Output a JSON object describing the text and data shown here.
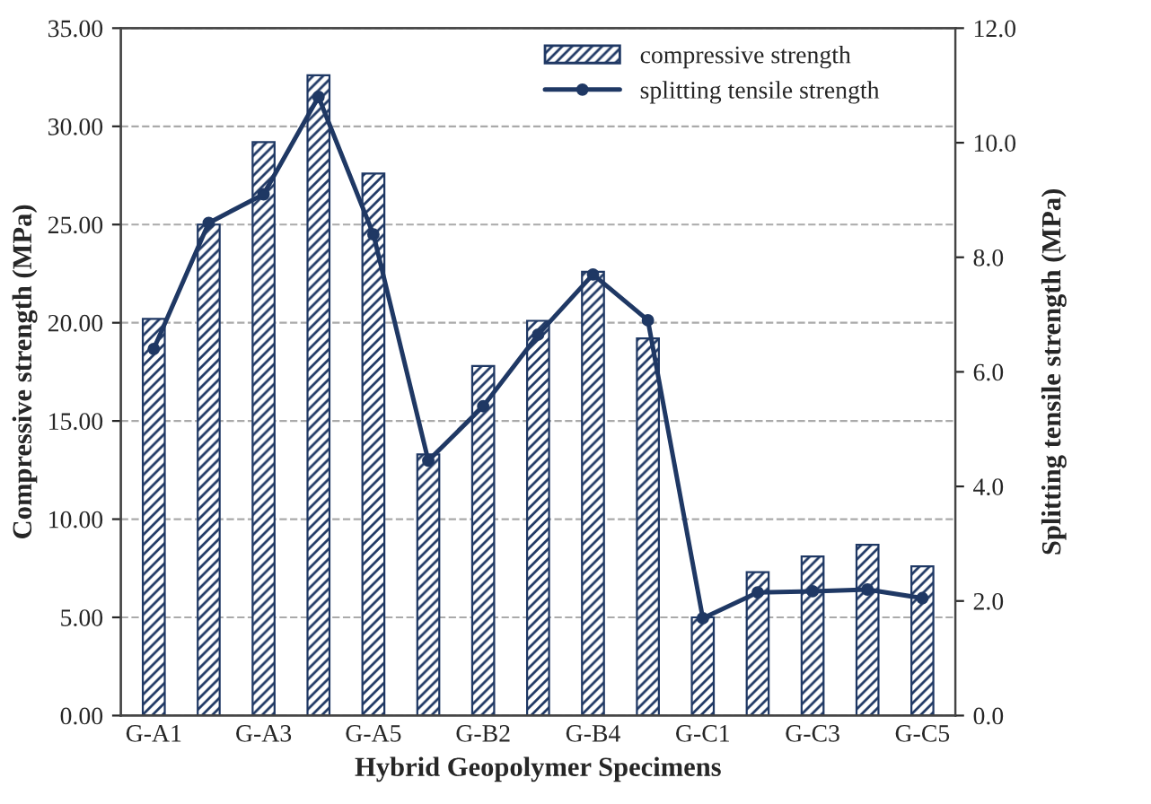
{
  "chart_data": {
    "type": "bar",
    "xlabel": "Hybrid Geopolymer Specimens",
    "ylabel": "Compressive strength (MPa)",
    "y2label": "Splitting tensile strength (MPa)",
    "categories": [
      "G-A1",
      null,
      "G-A3",
      null,
      "G-A5",
      null,
      "G-B2",
      null,
      "G-B4",
      null,
      "G-C1",
      null,
      "G-C3",
      null,
      "G-C5"
    ],
    "series": [
      {
        "name": "compressive strength",
        "color": "#1f3864",
        "values": [
          20.2,
          25.0,
          29.2,
          32.6,
          27.6,
          13.3,
          17.8,
          20.1,
          22.6,
          19.2,
          5.0,
          7.3,
          8.1,
          8.7,
          7.6
        ]
      },
      {
        "name": "splitting tensile strength",
        "type": "line",
        "axis": "y2",
        "color": "#1f3864",
        "marker": "circle",
        "values": [
          6.4,
          8.6,
          9.1,
          10.8,
          8.4,
          4.45,
          5.4,
          6.65,
          7.7,
          6.9,
          1.7,
          2.15,
          2.17,
          2.2,
          2.05
        ]
      }
    ],
    "ylim": [
      0,
      35
    ],
    "yticks": [
      {
        "value": 0,
        "label": "0.00"
      },
      {
        "value": 5,
        "label": "5.00"
      },
      {
        "value": 10,
        "label": "10.00"
      },
      {
        "value": 15,
        "label": "15.00"
      },
      {
        "value": 20,
        "label": "20.00"
      },
      {
        "value": 25,
        "label": "25.00"
      },
      {
        "value": 30,
        "label": "30.00"
      },
      {
        "value": 35,
        "label": "35.00"
      }
    ],
    "y2lim": [
      0,
      12
    ],
    "y2ticks": [
      {
        "value": 0,
        "label": "0.0"
      },
      {
        "value": 2,
        "label": "2.0"
      },
      {
        "value": 4,
        "label": "4.0"
      },
      {
        "value": 6,
        "label": "6.0"
      },
      {
        "value": 8,
        "label": "8.0"
      },
      {
        "value": 10,
        "label": "10.0"
      },
      {
        "value": 12,
        "label": "12.0"
      }
    ],
    "grid": "y",
    "legend": "top right"
  }
}
